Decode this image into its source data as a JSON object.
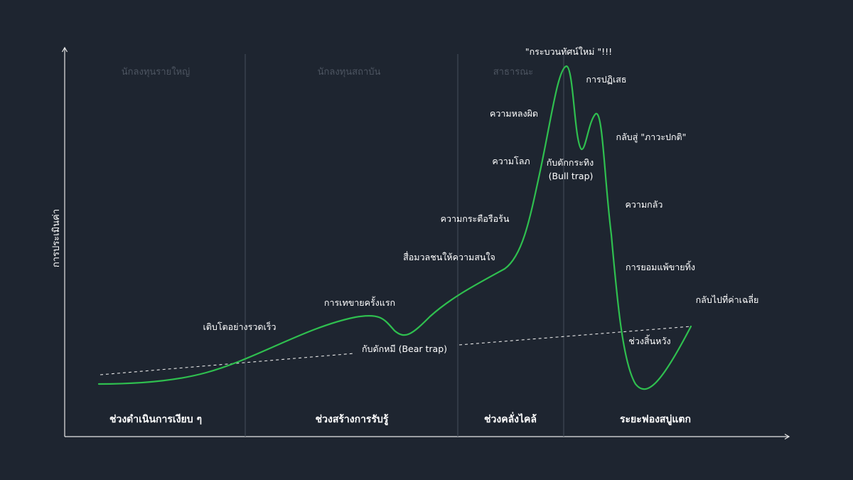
{
  "y_axis_label": "การประเมินค่า",
  "investor_groups": [
    "นักลงทุนรายใหญ่",
    "นักลงทุนสถาบัน",
    "สาธารณะ"
  ],
  "phases": [
    "ช่วงดำเนินการเงียบ ๆ",
    "ช่วงสร้างการรับรู้",
    "ช่วงคลั่งไคล้",
    "ระยะฟองสบู่แตก"
  ],
  "annotations": {
    "rapid_growth": "เติบโตอย่างรวดเร็ว",
    "first_selloff": "การเทขายครั้งแรก",
    "bear_trap": "กับดักหมี (Bear trap)",
    "media_attention": "สื่อมวลชนให้ความสนใจ",
    "enthusiasm": "ความกระตือรือร้น",
    "greed": "ความโลภ",
    "delusion": "ความหลงผิด",
    "new_paradigm": "\"กระบวนทัศน์ใหม่ \"!!!",
    "denial": "การปฏิเสธ",
    "bull_trap_line1": "กับดักกระทิง",
    "bull_trap_line2": "(Bull trap)",
    "return_to_normal": "กลับสู่ \"ภาวะปกติ\"",
    "fear": "ความกลัว",
    "capitulation": "การยอมแพ้ขายทิ้ง",
    "return_to_mean": "กลับไปที่ค่าเฉลี่ย",
    "despair": "ช่วงสิ้นหวัง"
  },
  "colors": {
    "background": "#1e2530",
    "curve": "#2fbf4f",
    "divider": "#3e4652",
    "investor_label": "#4d5561",
    "text": "#ffffff"
  }
}
